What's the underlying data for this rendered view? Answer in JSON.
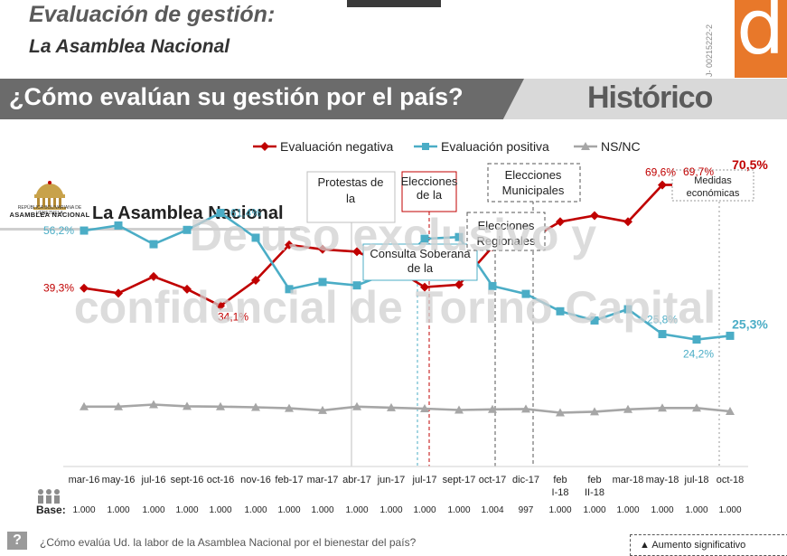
{
  "header": {
    "title": "Evaluación de gestión:",
    "subtitle": "La Asamblea Nacional",
    "code": "J- 00215222-2",
    "logo_letter": "d"
  },
  "banner": {
    "question": "¿Cómo evalúan su gestión por el país?",
    "historico": "Histórico"
  },
  "institution": {
    "seal_line1": "REPÚBLICA BOLIVARIANA DE VENEZUELA",
    "seal_line2": "ASAMBLEA NACIONAL",
    "title": "La Asamblea Nacional"
  },
  "watermark": {
    "line1": "De uso exclusivo y",
    "line2": "confidencial de Torino Capital"
  },
  "footer": {
    "question": "¿Cómo evalúa Ud. la labor de la Asamblea Nacional por el bienestar del país?",
    "icon": "?",
    "legend_note": "▲ Aumento significativo"
  },
  "colors": {
    "negative": "#c00000",
    "positive": "#4badc6",
    "nsnc": "#a6a6a6",
    "accent": "#e8782a"
  },
  "chart_data": {
    "type": "line",
    "x": [
      "mar-16",
      "may-16",
      "jul-16",
      "sept-16",
      "oct-16",
      "nov-16",
      "feb-17",
      "mar-17",
      "abr-17",
      "jun-17",
      "jul-17",
      "sept-17",
      "oct-17",
      "dic-17",
      "feb I-18",
      "feb II-18",
      "mar-18",
      "may-18",
      "jul-18",
      "oct-18"
    ],
    "series": [
      {
        "name": "Evaluación negativa",
        "values": [
          39.3,
          37.8,
          42.7,
          39.0,
          34.1,
          41.6,
          52.0,
          50.7,
          50.0,
          45.6,
          39.6,
          40.3,
          51.4,
          53.0,
          58.8,
          60.6,
          58.8,
          69.6,
          69.7,
          70.5
        ]
      },
      {
        "name": "Evaluación positiva",
        "values": [
          56.2,
          57.7,
          52.2,
          56.4,
          61.4,
          54.1,
          39.0,
          41.1,
          40.1,
          44.1,
          53.8,
          54.3,
          39.9,
          37.6,
          32.5,
          29.8,
          33.1,
          25.8,
          24.2,
          25.3
        ]
      },
      {
        "name": "NS/NC",
        "values": [
          4.5,
          4.5,
          5.1,
          4.6,
          4.5,
          4.3,
          4.0,
          3.4,
          4.5,
          4.2,
          3.9,
          3.5,
          3.7,
          3.8,
          2.7,
          3.0,
          3.7,
          4.1,
          4.1,
          3.1
        ]
      }
    ],
    "data_labels": [
      {
        "series": 0,
        "index": 0,
        "text": "39,3%"
      },
      {
        "series": 0,
        "index": 4,
        "text": "34,1%"
      },
      {
        "series": 0,
        "index": 17,
        "text": "69,6%"
      },
      {
        "series": 0,
        "index": 18,
        "text": "69,7%"
      },
      {
        "series": 0,
        "index": 19,
        "text": "70,5%"
      },
      {
        "series": 1,
        "index": 0,
        "text": "56,2%"
      },
      {
        "series": 1,
        "index": 4,
        "text": "61,4%"
      },
      {
        "series": 1,
        "index": 17,
        "text": "25,8%"
      },
      {
        "series": 1,
        "index": 18,
        "text": "24,2%"
      },
      {
        "series": 1,
        "index": 19,
        "text": "25,3%"
      }
    ],
    "base_label": "Base:",
    "bases": [
      "1.000",
      "1.000",
      "1.000",
      "1.000",
      "1.000",
      "1.000",
      "1.000",
      "1.000",
      "1.000",
      "1.000",
      "1.000",
      "1.000",
      "1.004",
      "997",
      "1.000",
      "1.000",
      "1.000",
      "1.000",
      "1.000",
      "1.000"
    ],
    "annotations": [
      {
        "text": "Protestas de la oposición",
        "at": "abr-17"
      },
      {
        "text": "Elecciones de la ANC",
        "at": "jul-17"
      },
      {
        "text": "Consulta Soberana de la oposición",
        "at": "jul-17"
      },
      {
        "text": "Elecciones Regionales",
        "at": "oct-17"
      },
      {
        "text": "Elecciones Municipales",
        "at": "dic-17"
      },
      {
        "text": "Medidas económicas",
        "at": "oct-18"
      }
    ],
    "legend_position": "top"
  }
}
